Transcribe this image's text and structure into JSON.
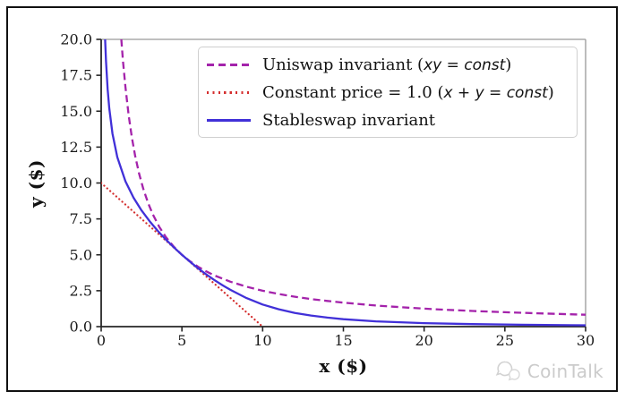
{
  "figure": {
    "background": "#ffffff",
    "border_color": "#111111",
    "spine_color_major": "#262626",
    "spine_color_minor": "#999999",
    "tick_text_color": "#1a1a1a"
  },
  "watermark": {
    "text": "CoinTalk",
    "icon": "chat-bubbles-icon",
    "color": "#cbcbcb"
  },
  "legend": {
    "items": [
      {
        "prefix": "Uniswap invariant (",
        "math": "xy = const",
        "suffix": ")"
      },
      {
        "prefix": "Constant price = 1.0 (",
        "math": "x + y = const",
        "suffix": ")"
      },
      {
        "prefix": "Stableswap invariant",
        "math": "",
        "suffix": ""
      }
    ]
  },
  "chart_data": {
    "type": "line",
    "title": "",
    "xlabel": "x ($)",
    "ylabel": "y ($)",
    "xlim": [
      0,
      30
    ],
    "ylim": [
      0,
      20
    ],
    "grid": false,
    "legend_position": "upper center inside",
    "xticks": {
      "values": [
        0,
        5,
        10,
        15,
        20,
        25,
        30
      ],
      "labels": [
        "0",
        "5",
        "10",
        "15",
        "20",
        "25",
        "30"
      ]
    },
    "yticks": {
      "values": [
        0,
        2.5,
        5,
        7.5,
        10,
        12.5,
        15,
        17.5,
        20
      ],
      "labels": [
        "0.0",
        "2.5",
        "5.0",
        "7.5",
        "10.0",
        "12.5",
        "15.0",
        "17.5",
        "20.0"
      ]
    },
    "series": [
      {
        "name": "Uniswap invariant (xy = const)",
        "equation": "x*y = 25",
        "style": "dashed",
        "color": "#a423ab",
        "width": 2.3,
        "points": [
          [
            1.25,
            20
          ],
          [
            1.35,
            18.52
          ],
          [
            1.5,
            16.67
          ],
          [
            1.7,
            14.71
          ],
          [
            1.9,
            13.16
          ],
          [
            2.1,
            11.9
          ],
          [
            2.35,
            10.64
          ],
          [
            2.6,
            9.62
          ],
          [
            2.9,
            8.62
          ],
          [
            3.2,
            7.81
          ],
          [
            3.6,
            6.94
          ],
          [
            4,
            6.25
          ],
          [
            4.5,
            5.56
          ],
          [
            5,
            5
          ],
          [
            5.5,
            4.55
          ],
          [
            6,
            4.17
          ],
          [
            6.5,
            3.85
          ],
          [
            7,
            3.57
          ],
          [
            8,
            3.13
          ],
          [
            9,
            2.78
          ],
          [
            10,
            2.5
          ],
          [
            11,
            2.27
          ],
          [
            12,
            2.08
          ],
          [
            13,
            1.92
          ],
          [
            14,
            1.79
          ],
          [
            15,
            1.67
          ],
          [
            17,
            1.47
          ],
          [
            19,
            1.32
          ],
          [
            21,
            1.19
          ],
          [
            23,
            1.09
          ],
          [
            25,
            1.0
          ],
          [
            27,
            0.93
          ],
          [
            30,
            0.83
          ]
        ]
      },
      {
        "name": "Constant price = 1.0 (x + y = const)",
        "equation": "x + y = 10",
        "style": "dotted",
        "color": "#d42e2e",
        "width": 2.2,
        "points": [
          [
            0,
            10
          ],
          [
            10,
            0
          ]
        ]
      },
      {
        "name": "Stableswap invariant",
        "equation": "stableswap A=1, D=10, n=2",
        "style": "solid",
        "color": "#4130d8",
        "width": 2.3,
        "points": [
          [
            0.245,
            20
          ],
          [
            0.26,
            19.54
          ],
          [
            0.3,
            18.47
          ],
          [
            0.4,
            16.54
          ],
          [
            0.5,
            15.22
          ],
          [
            0.7,
            13.44
          ],
          [
            1,
            11.8
          ],
          [
            1.5,
            10.12
          ],
          [
            2,
            8.98
          ],
          [
            2.5,
            8.09
          ],
          [
            3,
            7.34
          ],
          [
            3.5,
            6.67
          ],
          [
            4,
            6.07
          ],
          [
            4.5,
            5.52
          ],
          [
            5,
            5
          ],
          [
            5.5,
            4.52
          ],
          [
            6,
            4.06
          ],
          [
            6.5,
            3.64
          ],
          [
            7,
            3.25
          ],
          [
            7.5,
            2.89
          ],
          [
            8,
            2.56
          ],
          [
            9,
            1.99
          ],
          [
            10,
            1.54
          ],
          [
            11,
            1.21
          ],
          [
            12,
            0.95
          ],
          [
            13,
            0.77
          ],
          [
            14,
            0.63
          ],
          [
            15,
            0.52
          ],
          [
            17,
            0.37
          ],
          [
            20,
            0.245
          ],
          [
            23,
            0.174
          ],
          [
            26,
            0.129
          ],
          [
            30,
            0.092
          ]
        ]
      }
    ]
  }
}
